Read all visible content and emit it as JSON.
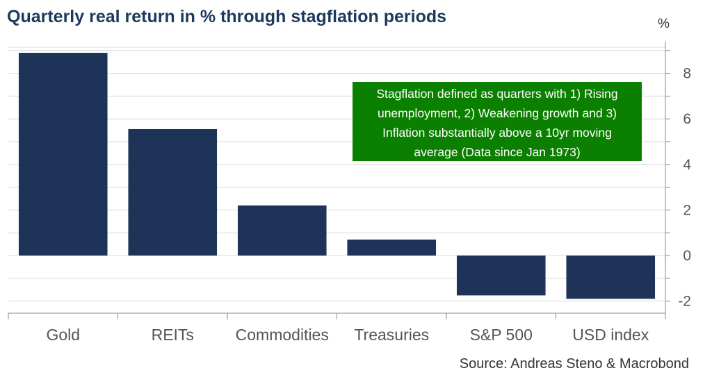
{
  "title": "Quarterly real return in % through stagflation periods",
  "unit_label": "%",
  "source": "Source: Andreas Steno & Macrobond",
  "annotation": "Stagflation defined as quarters with 1) Rising unemployment, 2) Weakening growth and 3) Inflation substantially above a 10yr moving average (Data since Jan 1973)",
  "colors": {
    "bar": "#1d3358",
    "annotation_bg": "#0b8000",
    "gridline": "#d9d9d9",
    "title": "#1c3a5e"
  },
  "chart_data": {
    "type": "bar",
    "title": "Quarterly real return in % through stagflation periods",
    "xlabel": "",
    "ylabel": "%",
    "categories": [
      "Gold",
      "REITs",
      "Commodities",
      "Treasuries",
      "S&P 500",
      "USD index"
    ],
    "values": [
      8.9,
      5.55,
      2.2,
      0.7,
      -1.75,
      -1.9
    ],
    "ylim": [
      -2.5,
      9.2
    ],
    "yticks": [
      -2,
      0,
      2,
      4,
      6,
      8
    ],
    "ytick_labels": [
      "-2",
      "0",
      "2",
      "4",
      "6",
      "8"
    ],
    "y_axis_side": "right",
    "grid": true
  }
}
